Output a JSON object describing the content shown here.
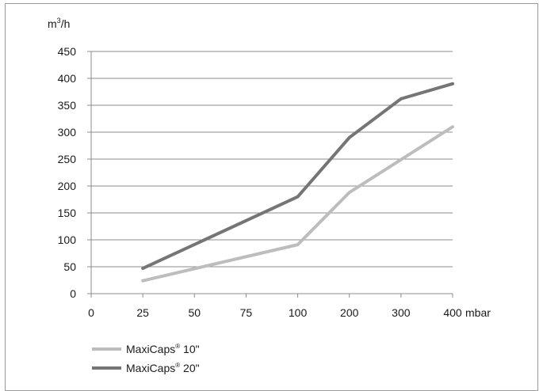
{
  "chart_data": {
    "type": "line",
    "ylabel": "m",
    "ylabel_sup": "3",
    "ylabel_suffix": "/h",
    "xlabel": "mbar",
    "categories": [
      "0",
      "25",
      "50",
      "75",
      "100",
      "200",
      "300",
      "400"
    ],
    "yticks": [
      "0",
      "50",
      "100",
      "150",
      "200",
      "250",
      "300",
      "350",
      "400",
      "450"
    ],
    "ylim": [
      0,
      450
    ],
    "grid": true,
    "legend_position": "bottom-left",
    "series": [
      {
        "name": "MaxiCaps",
        "name_sup": "®",
        "name_suffix": " 10\"",
        "color": "#bdbdbd",
        "x": [
          "25",
          "100",
          "200",
          "300",
          "400"
        ],
        "values": [
          24,
          91,
          188,
          249,
          310
        ]
      },
      {
        "name": "MaxiCaps",
        "name_sup": "®",
        "name_suffix": " 20\"",
        "color": "#757575",
        "x": [
          "25",
          "100",
          "200",
          "300",
          "400"
        ],
        "values": [
          47,
          180,
          290,
          362,
          390
        ]
      }
    ]
  }
}
